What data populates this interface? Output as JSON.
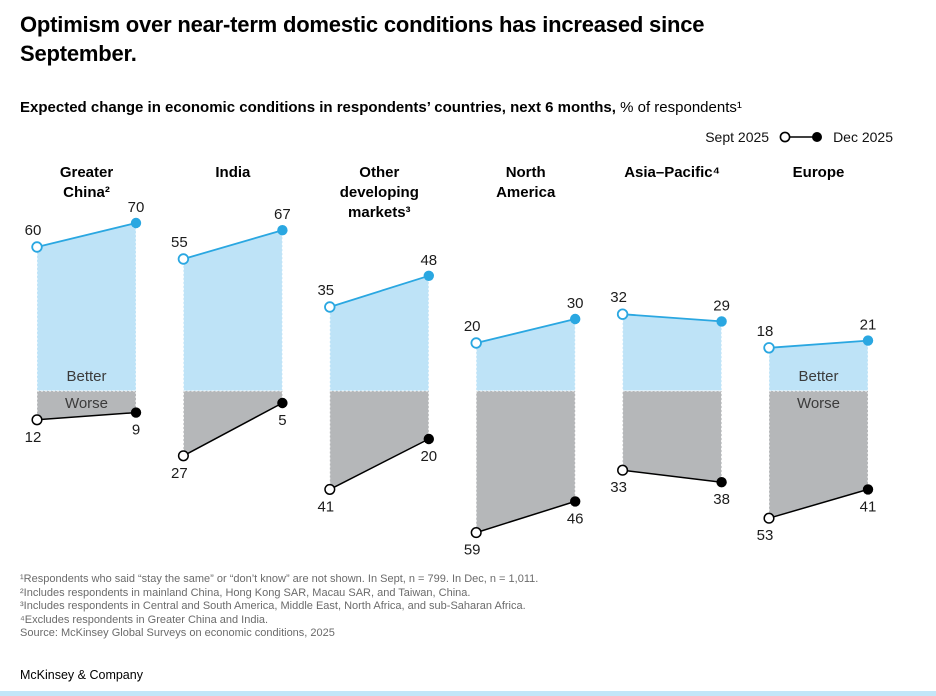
{
  "title_lines": [
    "Optimism over near-term domestic conditions has increased since",
    "September."
  ],
  "subtitle": {
    "bold": "Expected change in economic conditions in respondents’ countries, next 6 months,",
    "regular": " % of respondents¹"
  },
  "colors": {
    "blue": "#2aa7e1",
    "blue_fill": "#bee3f7",
    "gray_fill": "#b5b7b9",
    "black": "#000000",
    "bottom_bar": "#c2e6f8"
  },
  "chart_data": {
    "type": "slope-area",
    "x": [
      "Sept 2025",
      "Dec 2025"
    ],
    "unit": "% of respondents",
    "baseline_value": 0,
    "zone_labels": {
      "positive": "Better",
      "negative": "Worse"
    },
    "groups": [
      {
        "label": "Greater China²",
        "label_lines": [
          "Greater",
          "China²"
        ],
        "better": [
          60,
          70
        ],
        "worse": [
          12,
          9
        ],
        "show_zone_labels": true
      },
      {
        "label": "India",
        "label_lines": [
          "India"
        ],
        "better": [
          55,
          67
        ],
        "worse": [
          27,
          5
        ],
        "show_zone_labels": false
      },
      {
        "label": "Other developing markets³",
        "label_lines": [
          "Other",
          "developing",
          "markets³"
        ],
        "better": [
          35,
          48
        ],
        "worse": [
          41,
          20
        ],
        "show_zone_labels": false
      },
      {
        "label": "North America",
        "label_lines": [
          "North",
          "America"
        ],
        "better": [
          20,
          30
        ],
        "worse": [
          59,
          46
        ],
        "show_zone_labels": false
      },
      {
        "label": "Asia–Pacific⁴",
        "label_lines": [
          "Asia–Pacific⁴"
        ],
        "better": [
          32,
          29
        ],
        "worse": [
          33,
          38
        ],
        "show_zone_labels": false
      },
      {
        "label": "Europe",
        "label_lines": [
          "Europe"
        ],
        "better": [
          18,
          21
        ],
        "worse": [
          53,
          41
        ],
        "show_zone_labels": true
      }
    ]
  },
  "footnotes": [
    "¹Respondents who said “stay the same” or “don’t know” are not shown. In Sept, n = 799. In Dec, n = 1,011.",
    "²Includes respondents in mainland China, Hong Kong SAR, Macau SAR, and Taiwan, China.",
    "³Includes respondents in Central and South America, Middle East, North Africa, and sub-Saharan Africa.",
    "⁴Excludes respondents in Greater China and India.",
    " Source: McKinsey Global Surveys on economic conditions, 2025"
  ],
  "footer": {
    "brand": "McKinsey & Company"
  }
}
